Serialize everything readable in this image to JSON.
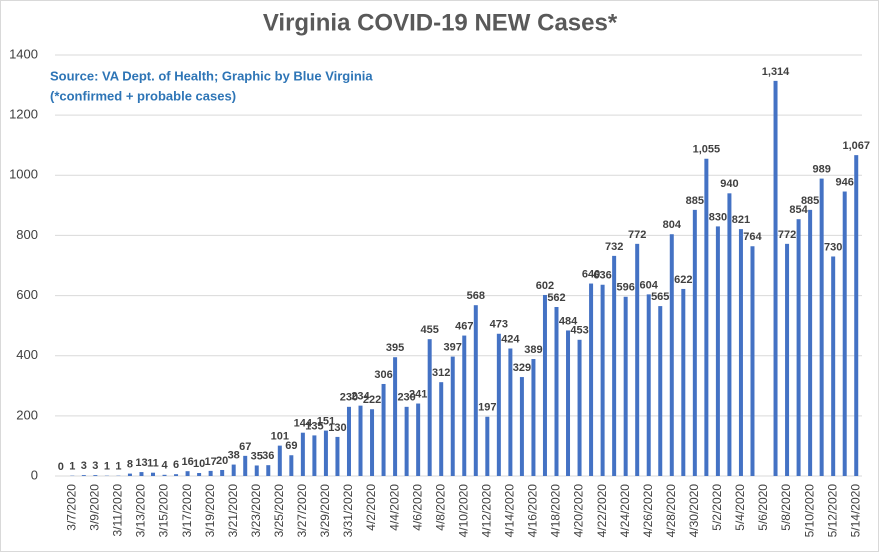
{
  "chart_data": {
    "type": "bar",
    "title": "Virginia COVID-19 NEW Cases*",
    "annotations": [
      "Source: VA Dept. of Health; Graphic by Blue Virginia",
      "(*confirmed + probable cases)"
    ],
    "categories": [
      null,
      "3/7/2020",
      null,
      "3/9/2020",
      null,
      "3/11/2020",
      null,
      "3/13/2020",
      null,
      "3/15/2020",
      null,
      "3/17/2020",
      null,
      "3/19/2020",
      null,
      "3/21/2020",
      null,
      "3/23/2020",
      null,
      "3/25/2020",
      null,
      "3/27/2020",
      null,
      "3/29/2020",
      null,
      "3/31/2020",
      null,
      "4/2/2020",
      null,
      "4/4/2020",
      null,
      "4/6/2020",
      null,
      "4/8/2020",
      null,
      "4/10/2020",
      null,
      "4/12/2020",
      null,
      "4/14/2020",
      null,
      "4/16/2020",
      null,
      "4/18/2020",
      null,
      "4/20/2020",
      null,
      "4/22/2020",
      null,
      "4/24/2020",
      null,
      "4/26/2020",
      null,
      "4/28/2020",
      null,
      "4/30/2020",
      null,
      "5/2/2020",
      null,
      "5/4/2020",
      null,
      "5/6/2020",
      null,
      "5/8/2020",
      null,
      "5/10/2020",
      null,
      "5/12/2020",
      null,
      "5/14/2020"
    ],
    "values": [
      0,
      1,
      3,
      3,
      1,
      1,
      8,
      13,
      11,
      4,
      6,
      16,
      10,
      17,
      20,
      38,
      67,
      35,
      36,
      101,
      69,
      144,
      135,
      151,
      130,
      230,
      234,
      222,
      306,
      395,
      230,
      241,
      455,
      312,
      397,
      467,
      568,
      197,
      473,
      424,
      329,
      389,
      602,
      562,
      484,
      453,
      640,
      636,
      732,
      596,
      772,
      604,
      565,
      804,
      622,
      885,
      1055,
      830,
      940,
      821,
      764,
      null,
      1314,
      772,
      854,
      885,
      989,
      730,
      946,
      1067
    ],
    "value_labels": [
      "0",
      "1",
      "3",
      "3",
      "1",
      "1",
      "8",
      "13",
      "11",
      "4",
      "6",
      "16",
      "10",
      "17",
      "20",
      "38",
      "67",
      "35",
      "36",
      "101",
      "69",
      "144",
      "135",
      "151",
      "130",
      "230",
      "234",
      "222",
      "306",
      "395",
      "230",
      "241",
      "455",
      "312",
      "397",
      "467",
      "568",
      "197",
      "473",
      "424",
      "329",
      "389",
      "602",
      "562",
      "484",
      "453",
      "640",
      "636",
      "732",
      "596",
      "772",
      "604",
      "565",
      "804",
      "622",
      "885",
      "1,055",
      "830",
      "940",
      "821",
      "764",
      null,
      "1,314",
      "772",
      "854",
      "885",
      "989",
      "730",
      "946",
      "1,067"
    ],
    "color": "#4472c4",
    "ylim": [
      0,
      1400
    ],
    "yticks": [
      0,
      200,
      400,
      600,
      800,
      1000,
      1200,
      1400
    ],
    "grid": true
  }
}
